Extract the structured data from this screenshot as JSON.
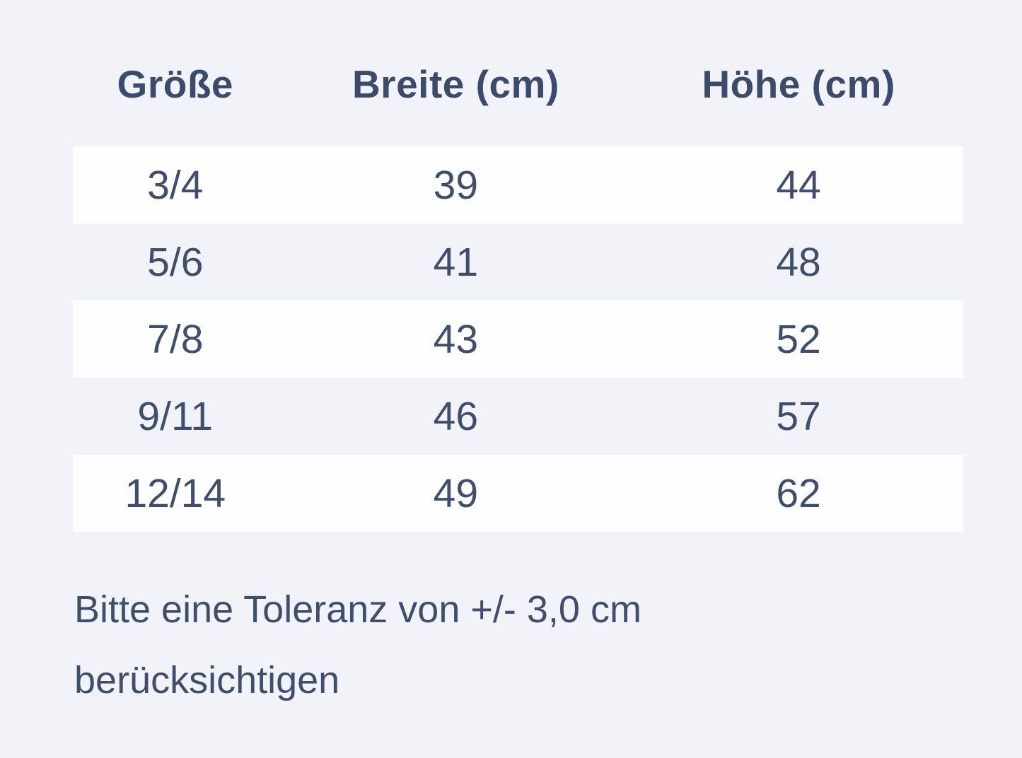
{
  "colors": {
    "page_bg": "#f1f3f9",
    "row_white": "#fefefe",
    "text": "#3f4e6c",
    "header_text": "#3c4b6a"
  },
  "chart_data": {
    "type": "table",
    "columns": [
      "Größe",
      "Breite (cm)",
      "Höhe (cm)"
    ],
    "rows": [
      [
        "3/4",
        "39",
        "44"
      ],
      [
        "5/6",
        "41",
        "48"
      ],
      [
        "7/8",
        "43",
        "52"
      ],
      [
        "9/11",
        "46",
        "57"
      ],
      [
        "12/14",
        "49",
        "62"
      ]
    ],
    "units": "cm",
    "layout_hints": {
      "striped_rows": "white bands on rows 1, 3, 5",
      "alignment": "center"
    },
    "note": "Bitte eine Toleranz von +/- 3,0 cm berücksichtigen"
  },
  "note": {
    "line1": "Bitte eine Toleranz von +/- 3,0 cm",
    "line2": "berücksichtigen"
  }
}
